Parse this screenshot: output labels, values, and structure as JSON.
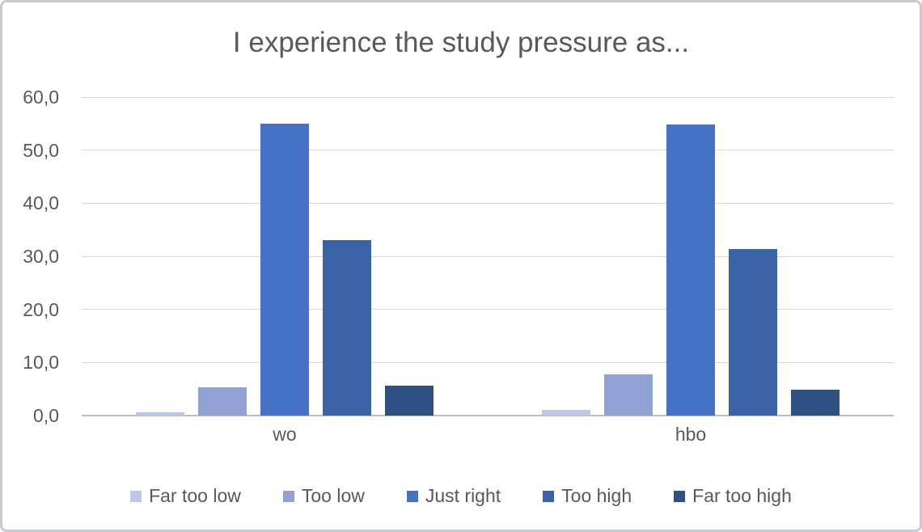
{
  "title": "I experience the study pressure as...",
  "chart_data": {
    "type": "bar",
    "title": "I experience the study pressure as...",
    "categories": [
      "wo",
      "hbo"
    ],
    "series": [
      {
        "name": "Far too low",
        "color": "#bdc7e8",
        "values": [
          0.6,
          1.1
        ]
      },
      {
        "name": "Too low",
        "color": "#8fa2d4",
        "values": [
          5.3,
          7.8
        ]
      },
      {
        "name": "Just right",
        "color": "#4472c4",
        "values": [
          55.0,
          54.8
        ]
      },
      {
        "name": "Too high",
        "color": "#3b63a8",
        "values": [
          33.0,
          31.3
        ]
      },
      {
        "name": "Far too high",
        "color": "#2f5085",
        "values": [
          5.7,
          4.9
        ]
      }
    ],
    "y_axis": {
      "min": 0,
      "max": 60,
      "step": 10,
      "tick_labels": [
        "0,0",
        "10,0",
        "20,0",
        "30,0",
        "40,0",
        "50,0",
        "60,0"
      ],
      "decimal_separator": ","
    },
    "grid": true,
    "legend_position": "bottom"
  },
  "colors": {
    "background": "#ffffff",
    "frame_border": "#c9cccf",
    "gridline": "#d9d9d9",
    "axis_line": "#bfbfbf",
    "text": "#595959"
  }
}
